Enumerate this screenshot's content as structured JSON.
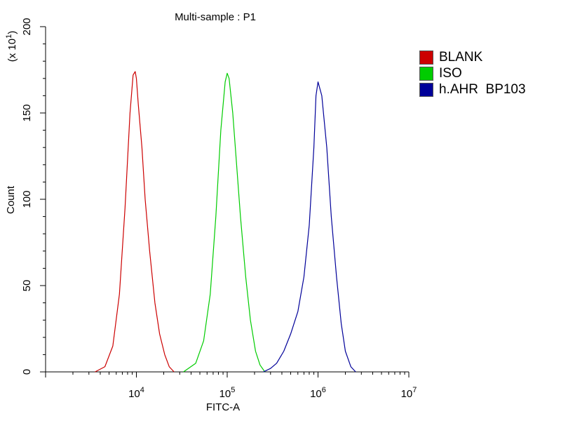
{
  "chart_data": {
    "type": "line",
    "title": "Multi-sample : P1",
    "xlabel": "FITC-A",
    "ylabel": "Count",
    "y_multiplier_label": "(x 10",
    "y_multiplier_exp": "1",
    "x_scale": "log",
    "xlim_exp": [
      3,
      7
    ],
    "ylim": [
      0,
      200
    ],
    "x_ticks": [
      {
        "base": "10",
        "exp": "4"
      },
      {
        "base": "10",
        "exp": "5"
      },
      {
        "base": "10",
        "exp": "6"
      },
      {
        "base": "10",
        "exp": "7"
      }
    ],
    "y_ticks": [
      "0",
      "50",
      "100",
      "150",
      "200"
    ],
    "legend_position": "outside-right",
    "series": [
      {
        "name": "BLANK",
        "color": "#cc0000",
        "x": [
          3500,
          4500,
          5500,
          6500,
          7500,
          8500,
          9200,
          9700,
          10000,
          10500,
          11500,
          12500,
          14000,
          16000,
          18000,
          20500,
          23000,
          26000
        ],
        "y": [
          0,
          3,
          15,
          45,
          95,
          150,
          172,
          174,
          170,
          155,
          130,
          100,
          70,
          40,
          22,
          10,
          3,
          0
        ]
      },
      {
        "name": "ISO",
        "color": "#00cc00",
        "x": [
          33000,
          45000,
          55000,
          65000,
          75000,
          85000,
          95000,
          100000,
          105000,
          115000,
          125000,
          140000,
          160000,
          180000,
          205000,
          230000,
          260000
        ],
        "y": [
          0,
          5,
          18,
          45,
          90,
          140,
          168,
          173,
          170,
          150,
          125,
          90,
          55,
          30,
          12,
          4,
          0
        ]
      },
      {
        "name": "h.AHR  BP103",
        "color": "#000099",
        "x": [
          250000,
          300000,
          350000,
          420000,
          500000,
          600000,
          700000,
          800000,
          900000,
          950000,
          1000000,
          1100000,
          1250000,
          1400000,
          1600000,
          1800000,
          2000000,
          2300000,
          2600000
        ],
        "y": [
          0,
          2,
          5,
          12,
          22,
          35,
          55,
          85,
          130,
          160,
          168,
          160,
          130,
          90,
          55,
          28,
          12,
          3,
          0
        ]
      }
    ]
  }
}
